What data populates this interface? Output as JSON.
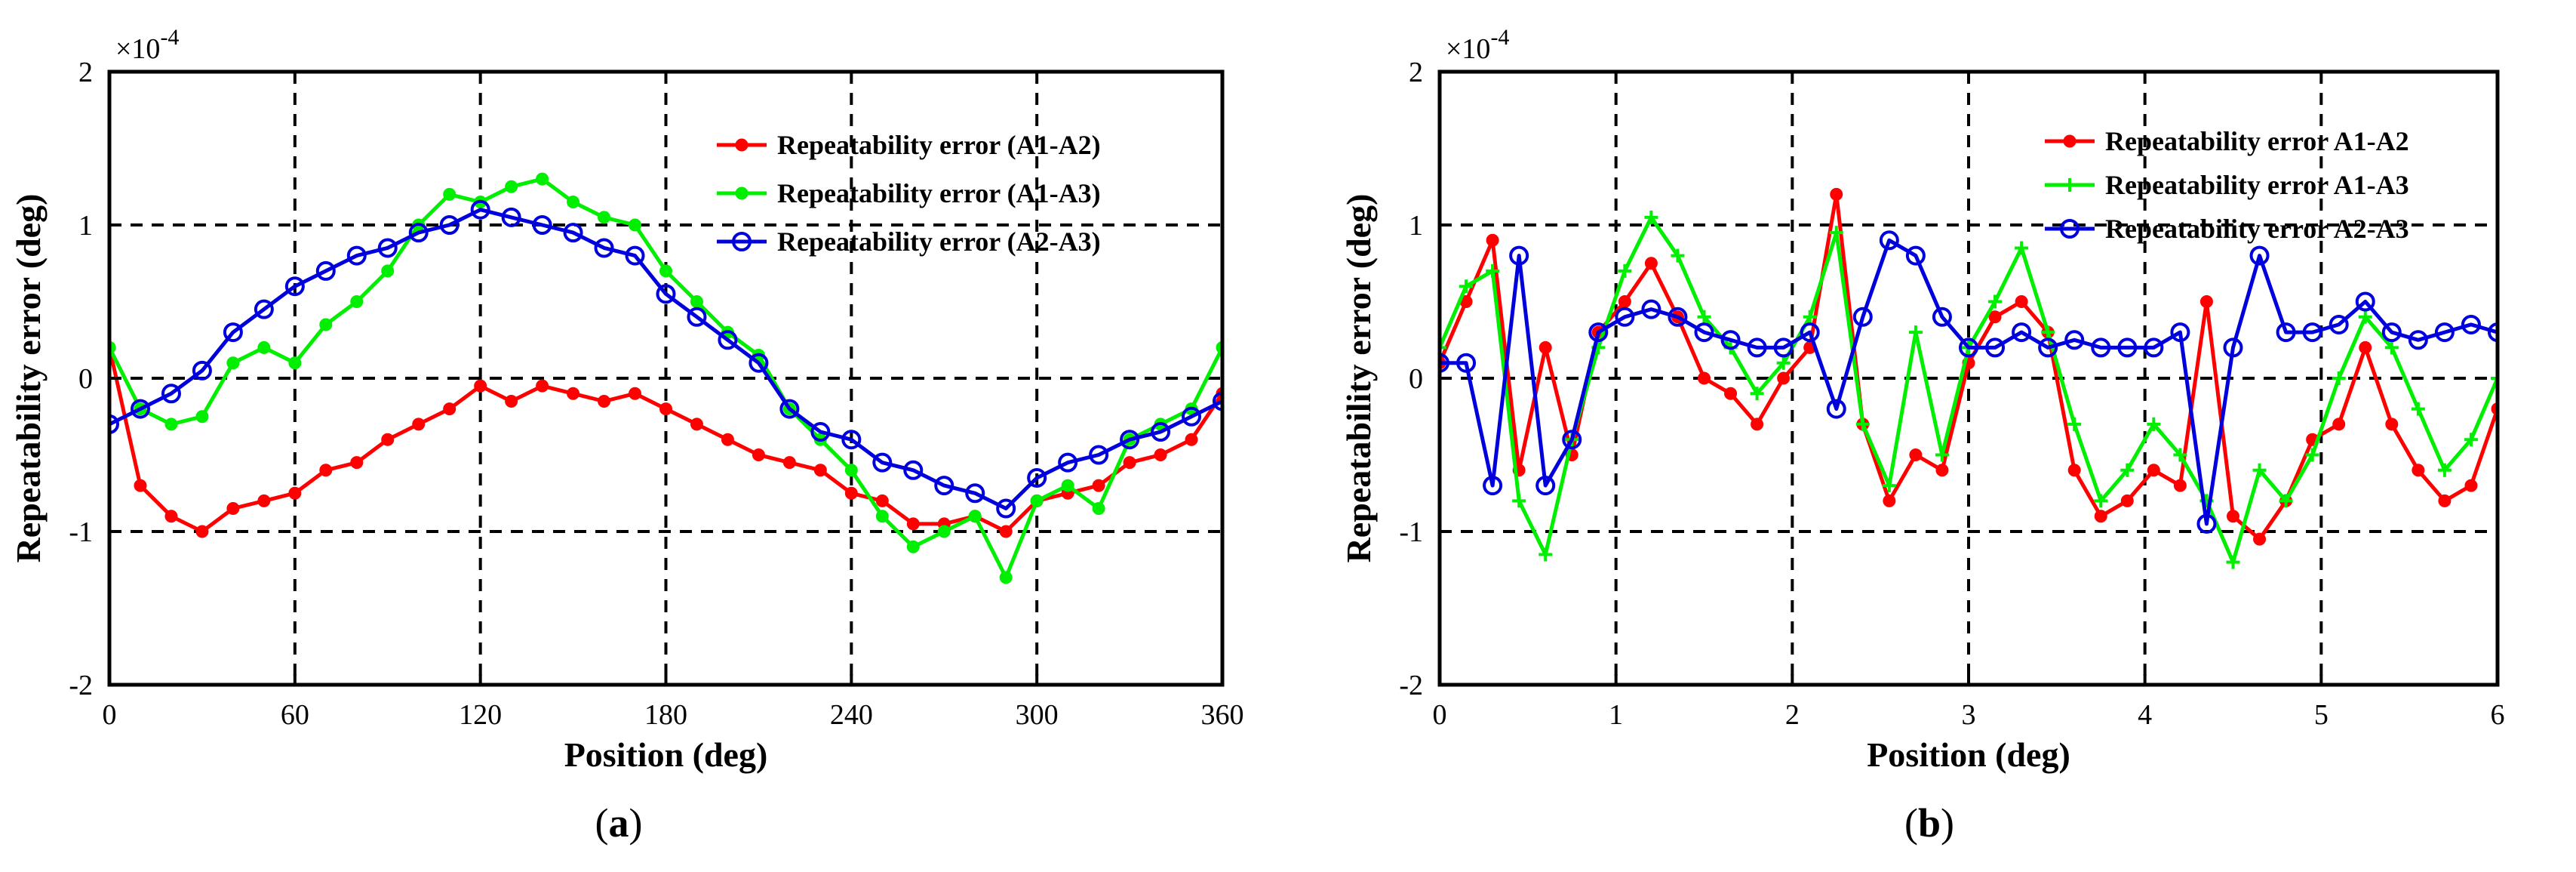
{
  "chart_data": [
    {
      "type": "line",
      "panel_label_prefix": "(",
      "panel_label_letter": "a",
      "panel_label_suffix": ")",
      "xlabel": "Position (deg)",
      "ylabel": "Repeatability error (deg)",
      "y_exponent": "×10",
      "y_exponent_power": "-4",
      "xlim": [
        0,
        360
      ],
      "ylim": [
        -2,
        2
      ],
      "xticks": [
        0,
        60,
        120,
        180,
        240,
        300,
        360
      ],
      "xtick_labels": [
        "0",
        "60",
        "120",
        "180",
        "240",
        "300",
        "360"
      ],
      "yticks": [
        -2,
        -1,
        0,
        1,
        2
      ],
      "ytick_labels": [
        "-2",
        "-1",
        "0",
        "1",
        "2"
      ],
      "grid": true,
      "legend_position": "top-right",
      "series": [
        {
          "name": "Repeatability error (A1-A2)",
          "color": "#ff0000",
          "marker": "dot",
          "x": [
            0,
            10,
            20,
            30,
            40,
            50,
            60,
            70,
            80,
            90,
            100,
            110,
            120,
            130,
            140,
            150,
            160,
            170,
            180,
            190,
            200,
            210,
            220,
            230,
            240,
            250,
            260,
            270,
            280,
            290,
            300,
            310,
            320,
            330,
            340,
            350,
            360
          ],
          "values": [
            0.2,
            -0.7,
            -0.9,
            -1.0,
            -0.85,
            -0.8,
            -0.75,
            -0.6,
            -0.55,
            -0.4,
            -0.3,
            -0.2,
            -0.05,
            -0.15,
            -0.05,
            -0.1,
            -0.15,
            -0.1,
            -0.2,
            -0.3,
            -0.4,
            -0.5,
            -0.55,
            -0.6,
            -0.75,
            -0.8,
            -0.95,
            -0.95,
            -0.9,
            -1.0,
            -0.8,
            -0.75,
            -0.7,
            -0.55,
            -0.5,
            -0.4,
            -0.1
          ]
        },
        {
          "name": "Repeatability error (A1-A3)",
          "color": "#00ee00",
          "marker": "dot",
          "x": [
            0,
            10,
            20,
            30,
            40,
            50,
            60,
            70,
            80,
            90,
            100,
            110,
            120,
            130,
            140,
            150,
            160,
            170,
            180,
            190,
            200,
            210,
            220,
            230,
            240,
            250,
            260,
            270,
            280,
            290,
            300,
            310,
            320,
            330,
            340,
            350,
            360
          ],
          "values": [
            0.2,
            -0.2,
            -0.3,
            -0.25,
            0.1,
            0.2,
            0.1,
            0.35,
            0.5,
            0.7,
            1.0,
            1.2,
            1.15,
            1.25,
            1.3,
            1.15,
            1.05,
            1.0,
            0.7,
            0.5,
            0.3,
            0.15,
            -0.2,
            -0.4,
            -0.6,
            -0.9,
            -1.1,
            -1.0,
            -0.9,
            -1.3,
            -0.8,
            -0.7,
            -0.85,
            -0.4,
            -0.3,
            -0.2,
            0.2
          ]
        },
        {
          "name": "Repeatability error (A2-A3)",
          "color": "#0000dd",
          "marker": "circle",
          "x": [
            0,
            10,
            20,
            30,
            40,
            50,
            60,
            70,
            80,
            90,
            100,
            110,
            120,
            130,
            140,
            150,
            160,
            170,
            180,
            190,
            200,
            210,
            220,
            230,
            240,
            250,
            260,
            270,
            280,
            290,
            300,
            310,
            320,
            330,
            340,
            350,
            360
          ],
          "values": [
            -0.3,
            -0.2,
            -0.1,
            0.05,
            0.3,
            0.45,
            0.6,
            0.7,
            0.8,
            0.85,
            0.95,
            1.0,
            1.1,
            1.05,
            1.0,
            0.95,
            0.85,
            0.8,
            0.55,
            0.4,
            0.25,
            0.1,
            -0.2,
            -0.35,
            -0.4,
            -0.55,
            -0.6,
            -0.7,
            -0.75,
            -0.85,
            -0.65,
            -0.55,
            -0.5,
            -0.4,
            -0.35,
            -0.25,
            -0.15
          ]
        }
      ]
    },
    {
      "type": "line",
      "panel_label_prefix": "(",
      "panel_label_letter": "b",
      "panel_label_suffix": ")",
      "xlabel": "Position (deg)",
      "ylabel": "Repeatability error (deg)",
      "y_exponent": "×10",
      "y_exponent_power": "-4",
      "xlim": [
        0,
        6
      ],
      "ylim": [
        -2,
        2
      ],
      "xticks": [
        0,
        1,
        2,
        3,
        4,
        5,
        6
      ],
      "xtick_labels": [
        "0",
        "1",
        "2",
        "3",
        "4",
        "5",
        "6"
      ],
      "yticks": [
        -2,
        -1,
        0,
        1,
        2
      ],
      "ytick_labels": [
        "-2",
        "-1",
        "0",
        "1",
        "2"
      ],
      "grid": true,
      "legend_position": "top-right",
      "series": [
        {
          "name": "Repeatability error A1-A2",
          "color": "#ff0000",
          "marker": "dot",
          "x": [
            0,
            0.15,
            0.3,
            0.45,
            0.6,
            0.75,
            0.9,
            1.05,
            1.2,
            1.35,
            1.5,
            1.65,
            1.8,
            1.95,
            2.1,
            2.25,
            2.4,
            2.55,
            2.7,
            2.85,
            3.0,
            3.15,
            3.3,
            3.45,
            3.6,
            3.75,
            3.9,
            4.05,
            4.2,
            4.35,
            4.5,
            4.65,
            4.8,
            4.95,
            5.1,
            5.25,
            5.4,
            5.55,
            5.7,
            5.85,
            6.0
          ],
          "values": [
            0.1,
            0.5,
            0.9,
            -0.6,
            0.2,
            -0.5,
            0.3,
            0.5,
            0.75,
            0.4,
            0.0,
            -0.1,
            -0.3,
            0.0,
            0.2,
            1.2,
            -0.3,
            -0.8,
            -0.5,
            -0.6,
            0.1,
            0.4,
            0.5,
            0.3,
            -0.6,
            -0.9,
            -0.8,
            -0.6,
            -0.7,
            0.5,
            -0.9,
            -1.05,
            -0.8,
            -0.4,
            -0.3,
            0.2,
            -0.3,
            -0.6,
            -0.8,
            -0.7,
            -0.2
          ]
        },
        {
          "name": "Repeatability error A1-A3",
          "color": "#00ee00",
          "marker": "plus",
          "x": [
            0,
            0.15,
            0.3,
            0.45,
            0.6,
            0.75,
            0.9,
            1.05,
            1.2,
            1.35,
            1.5,
            1.65,
            1.8,
            1.95,
            2.1,
            2.25,
            2.4,
            2.55,
            2.7,
            2.85,
            3.0,
            3.15,
            3.3,
            3.45,
            3.6,
            3.75,
            3.9,
            4.05,
            4.2,
            4.35,
            4.5,
            4.65,
            4.8,
            4.95,
            5.1,
            5.25,
            5.4,
            5.55,
            5.7,
            5.85,
            6.0
          ],
          "values": [
            0.2,
            0.6,
            0.7,
            -0.8,
            -1.15,
            -0.4,
            0.2,
            0.7,
            1.05,
            0.8,
            0.4,
            0.2,
            -0.1,
            0.1,
            0.4,
            0.95,
            -0.3,
            -0.7,
            0.3,
            -0.5,
            0.2,
            0.5,
            0.85,
            0.3,
            -0.3,
            -0.8,
            -0.6,
            -0.3,
            -0.5,
            -0.8,
            -1.2,
            -0.6,
            -0.8,
            -0.5,
            0.0,
            0.4,
            0.2,
            -0.2,
            -0.6,
            -0.4,
            0.0
          ]
        },
        {
          "name": "Repeatability error A2-A3",
          "color": "#0000dd",
          "marker": "circle",
          "x": [
            0,
            0.15,
            0.3,
            0.45,
            0.6,
            0.75,
            0.9,
            1.05,
            1.2,
            1.35,
            1.5,
            1.65,
            1.8,
            1.95,
            2.1,
            2.25,
            2.4,
            2.55,
            2.7,
            2.85,
            3.0,
            3.15,
            3.3,
            3.45,
            3.6,
            3.75,
            3.9,
            4.05,
            4.2,
            4.35,
            4.5,
            4.65,
            4.8,
            4.95,
            5.1,
            5.25,
            5.4,
            5.55,
            5.7,
            5.85,
            6.0
          ],
          "values": [
            0.1,
            0.1,
            -0.7,
            0.8,
            -0.7,
            -0.4,
            0.3,
            0.4,
            0.45,
            0.4,
            0.3,
            0.25,
            0.2,
            0.2,
            0.3,
            -0.2,
            0.4,
            0.9,
            0.8,
            0.4,
            0.2,
            0.2,
            0.3,
            0.2,
            0.25,
            0.2,
            0.2,
            0.2,
            0.3,
            -0.95,
            0.2,
            0.8,
            0.3,
            0.3,
            0.35,
            0.5,
            0.3,
            0.25,
            0.3,
            0.35,
            0.3
          ]
        }
      ]
    }
  ]
}
